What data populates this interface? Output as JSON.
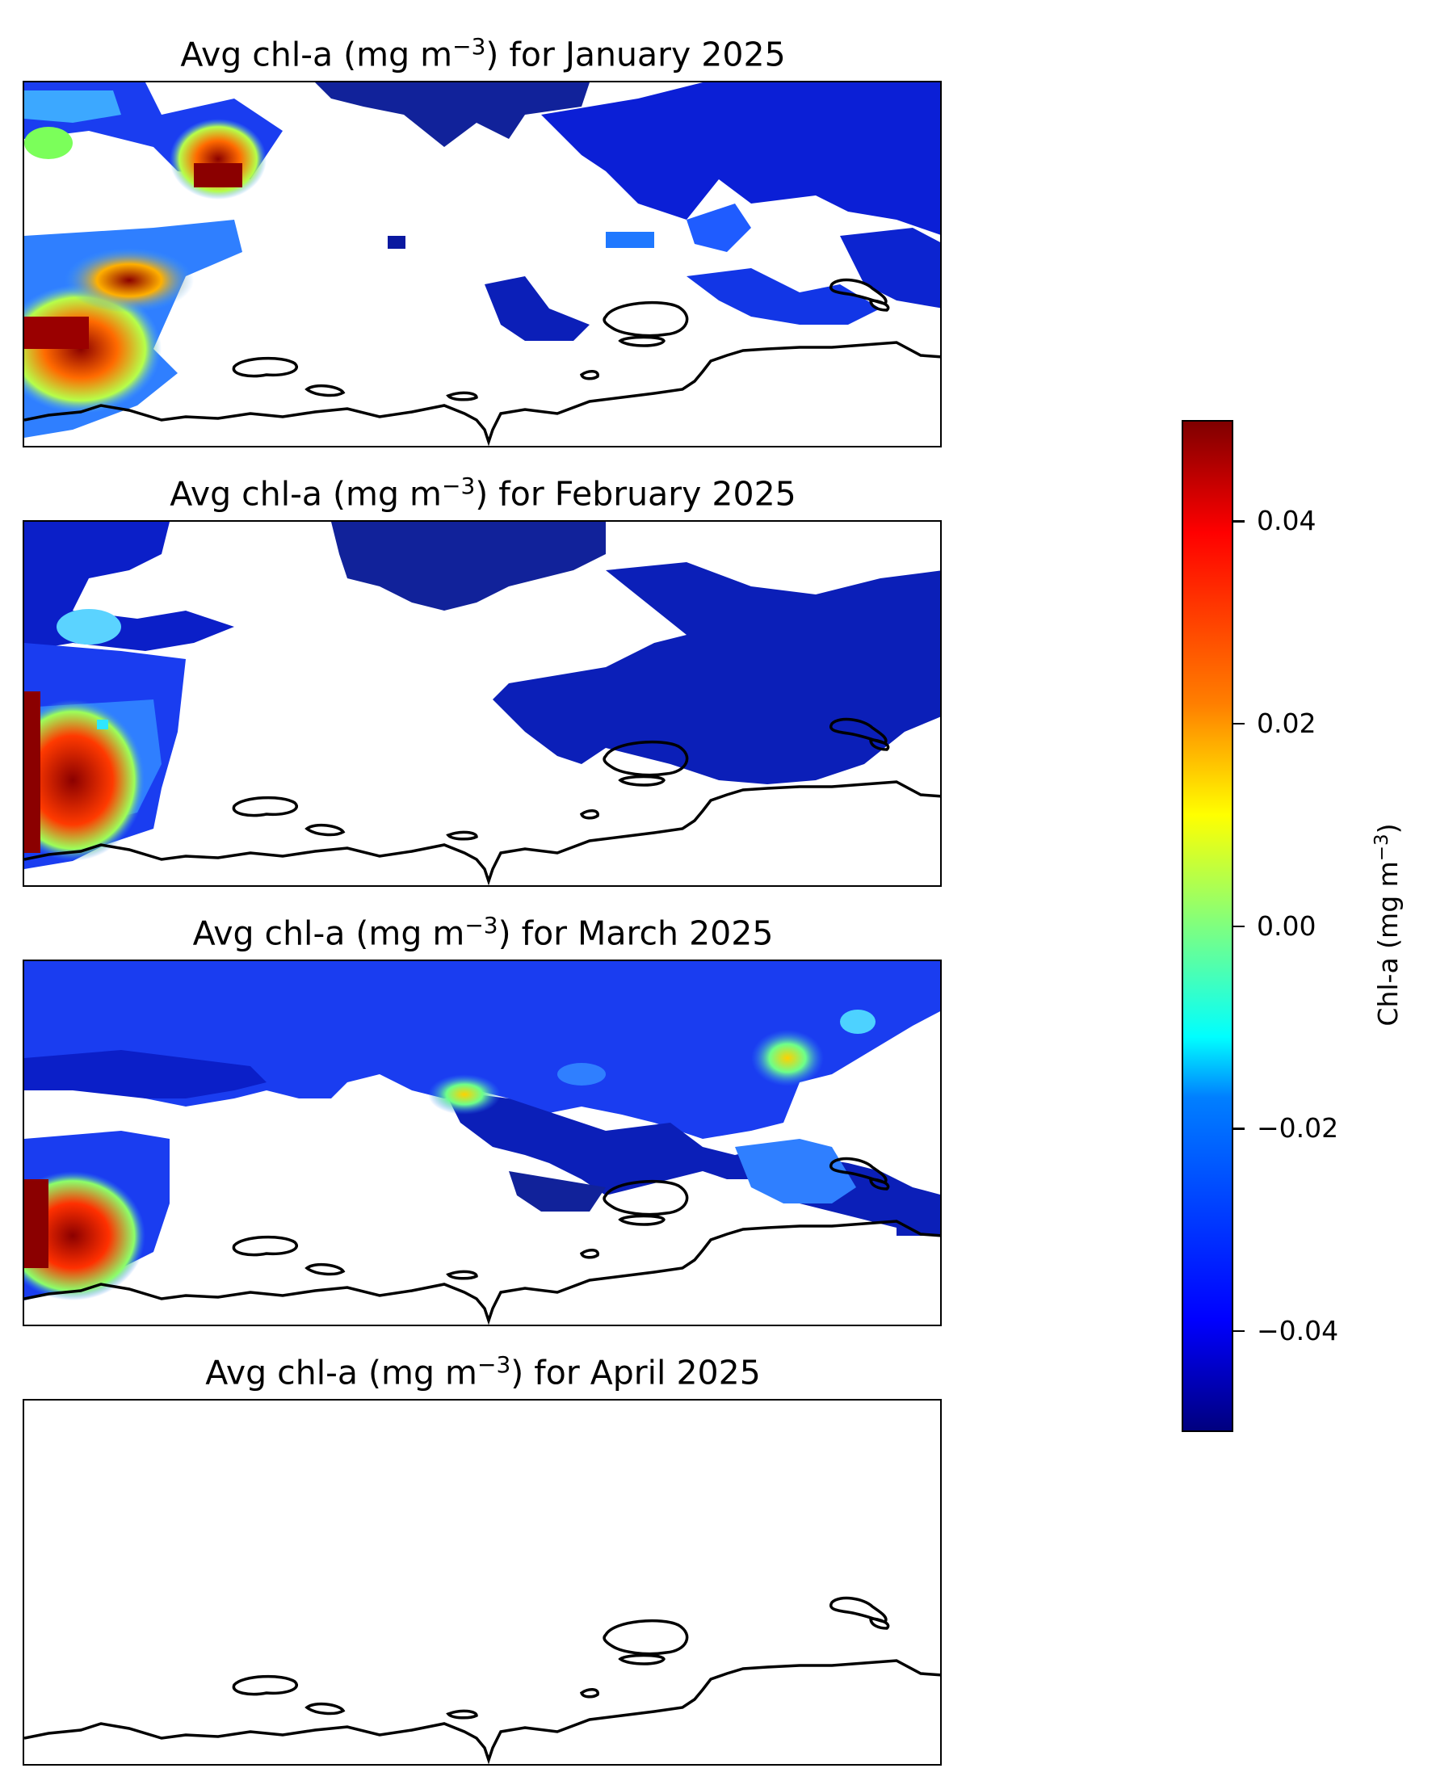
{
  "figure": {
    "panels": [
      {
        "title_text": "Avg chl-a (mg m",
        "title_exp": "−3",
        "title_tail": ") for January 2025",
        "month": "January 2025"
      },
      {
        "title_text": "Avg chl-a (mg m",
        "title_exp": "−3",
        "title_tail": ") for February 2025",
        "month": "February 2025"
      },
      {
        "title_text": "Avg chl-a (mg m",
        "title_exp": "−3",
        "title_tail": ") for March 2025",
        "month": "March 2025"
      },
      {
        "title_text": "Avg chl-a (mg m",
        "title_exp": "−3",
        "title_tail": ") for April 2025",
        "month": "April 2025",
        "data_present": false
      }
    ],
    "colorbar": {
      "label_text": "Chl-a (mg m",
      "label_exp": "−3",
      "label_tail": ")",
      "colormap": "jet",
      "range": [
        -0.05,
        0.05
      ],
      "ticks": [
        "0.04",
        "0.02",
        "0.00",
        "−0.02",
        "−0.04"
      ],
      "tick_values": [
        0.04,
        0.02,
        0.0,
        -0.02,
        -0.04
      ]
    },
    "colors": {
      "low": "#00007f",
      "high": "#7f0000",
      "coastline": "#000000",
      "land_mask": "#ffffff"
    }
  }
}
